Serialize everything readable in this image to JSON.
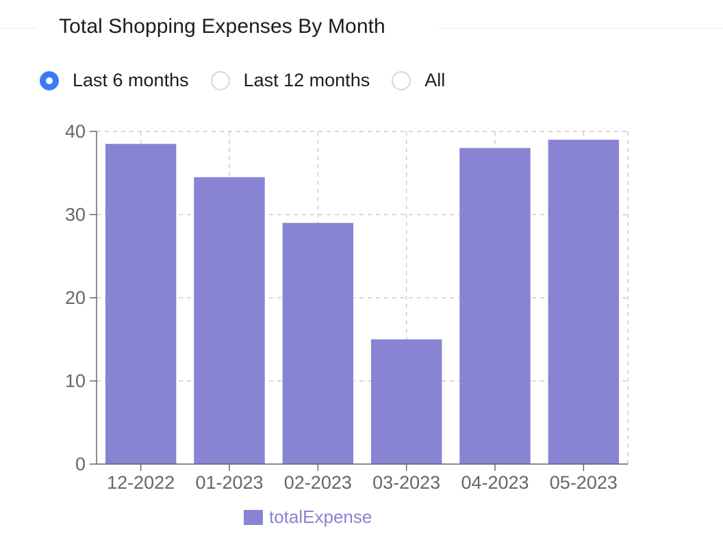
{
  "title": "Total Shopping Expenses By Month",
  "filter": {
    "options": [
      {
        "label": "Last 6 months",
        "checked": true
      },
      {
        "label": "Last 12 months",
        "checked": false
      },
      {
        "label": "All",
        "checked": false
      }
    ]
  },
  "colors": {
    "bar": "#8884d3",
    "accent": "#3b7bf4",
    "grid": "#cccccc",
    "axis": "#666666"
  },
  "chart_data": {
    "type": "bar",
    "categories": [
      "12-2022",
      "01-2023",
      "02-2023",
      "03-2023",
      "04-2023",
      "05-2023"
    ],
    "series": [
      {
        "name": "totalExpense",
        "values": [
          38.5,
          34.5,
          29,
          15,
          38,
          39
        ]
      }
    ],
    "ylim": [
      0,
      40
    ],
    "yticks": [
      0,
      10,
      20,
      30,
      40
    ],
    "grid": true,
    "legend": "bottom-center"
  }
}
